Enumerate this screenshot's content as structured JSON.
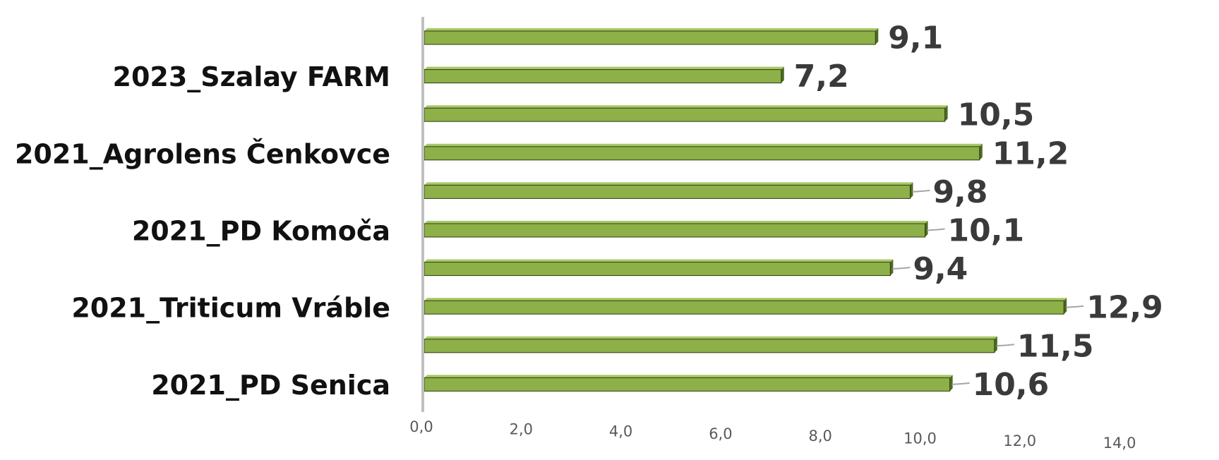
{
  "chart_data": {
    "type": "bar",
    "orientation": "horizontal",
    "categories": [
      "",
      "2023_Szalay FARM",
      "",
      "2021_Agrolens Čenkovce",
      "",
      "2021_PD Komoča",
      "",
      "2021_Triticum Vráble",
      "",
      "2021_PD Senica"
    ],
    "values": [
      9.1,
      7.2,
      10.5,
      11.2,
      9.8,
      10.1,
      9.4,
      12.9,
      11.5,
      10.6
    ],
    "value_labels": [
      "9,1",
      "7,2",
      "10,5",
      "11,2",
      "9,8",
      "10,1",
      "9,4",
      "12,9",
      "11,5",
      "10,6"
    ],
    "xticks": [
      "0,0",
      "2,0",
      "4,0",
      "6,0",
      "8,0",
      "10,0",
      "12,0",
      "14,0"
    ],
    "xlim": [
      0,
      14
    ],
    "title": "",
    "xlabel": "",
    "ylabel": "",
    "grid": false,
    "legend": "none",
    "colors": {
      "bar_front": "#8db048",
      "bar_top": "#a7c865",
      "bar_edge": "#2f3d15",
      "axis_line": "#bfbfbf",
      "leader_line": "#a6a6a6"
    }
  }
}
